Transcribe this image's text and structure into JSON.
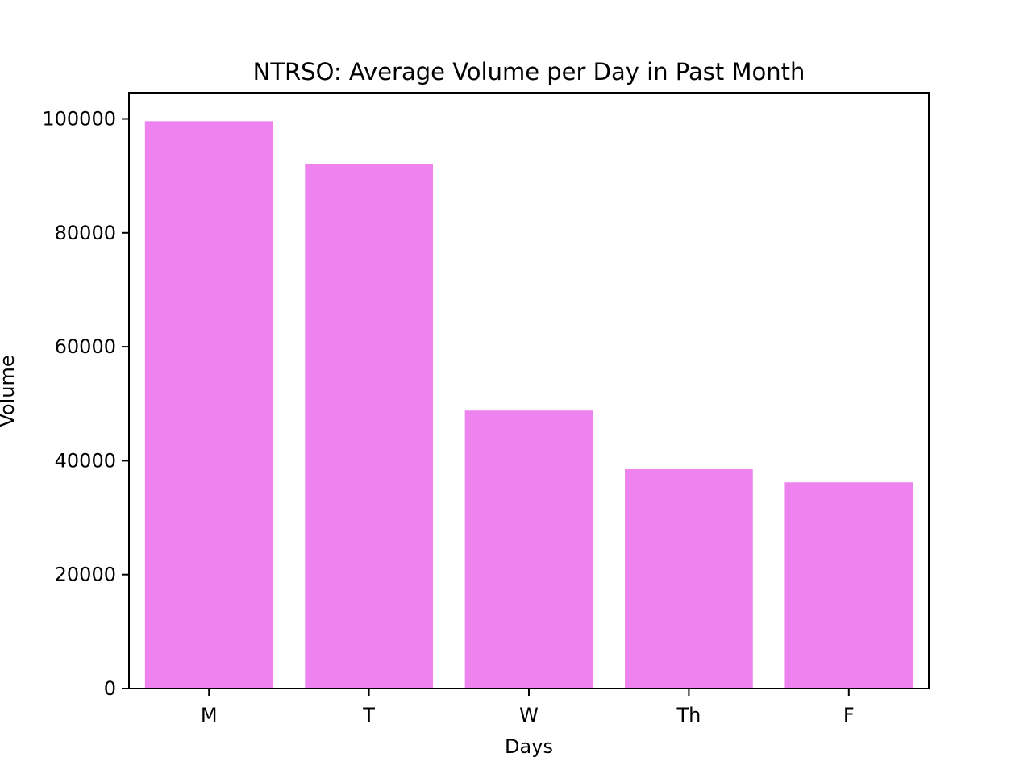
{
  "chart_data": {
    "type": "bar",
    "title": "NTRSO: Average Volume per Day in Past Month",
    "xlabel": "Days",
    "ylabel": "Volume",
    "categories": [
      "M",
      "T",
      "W",
      "Th",
      "F"
    ],
    "values": [
      99600,
      92000,
      48800,
      38500,
      36200
    ],
    "ylim": [
      0,
      104600
    ],
    "yticks": [
      0,
      20000,
      40000,
      60000,
      80000,
      100000
    ],
    "ytick_labels": [
      "0",
      "20000",
      "40000",
      "60000",
      "80000",
      "100000"
    ],
    "bar_color": "#ee82ee",
    "grid": false,
    "legend": "none"
  }
}
